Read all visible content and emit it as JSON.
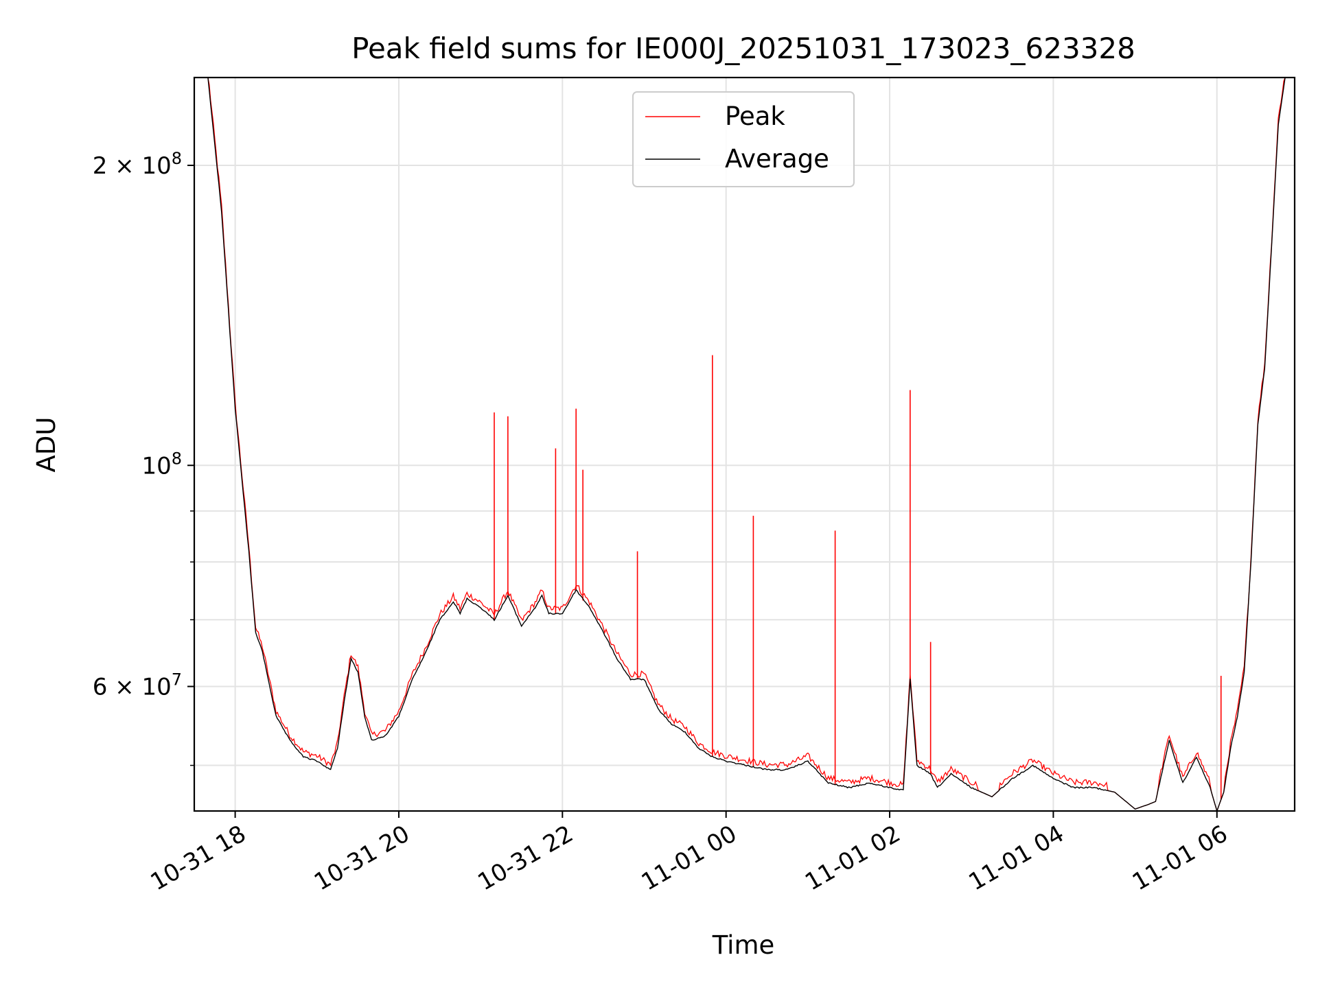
{
  "chart_data": {
    "type": "line",
    "title": "Peak field sums for IE000J_20251031_173023_623328",
    "xlabel": "Time",
    "ylabel": "ADU",
    "yscale": "log",
    "ylim": [
      45000000,
      245000000
    ],
    "xlim": [
      "2025-10-31T17:30",
      "2025-11-01T06:57"
    ],
    "grid": true,
    "legend_position": "upper center",
    "x_tick_labels": [
      "10-31 18",
      "10-31 20",
      "10-31 22",
      "11-01 00",
      "11-01 02",
      "11-01 04",
      "11-01 06"
    ],
    "x_ticks": [
      "2025-10-31T18:00",
      "2025-10-31T20:00",
      "2025-10-31T22:00",
      "2025-11-01T00:00",
      "2025-11-01T02:00",
      "2025-11-01T04:00",
      "2025-11-01T06:00"
    ],
    "y_major_ticks": [
      {
        "value": 200000000,
        "label_base": "2 × 10",
        "label_exp": "8"
      },
      {
        "value": 100000000,
        "label_base": "10",
        "label_exp": "8"
      },
      {
        "value": 60000000,
        "label_base": "6 × 10",
        "label_exp": "7"
      }
    ],
    "y_minor_ticks": [
      50000000,
      70000000,
      80000000,
      90000000
    ],
    "series": [
      {
        "name": "Average",
        "color": "#000000",
        "x": [
          "2025-10-31T17:30",
          "2025-10-31T17:40",
          "2025-10-31T17:50",
          "2025-10-31T18:00",
          "2025-10-31T18:10",
          "2025-10-31T18:15",
          "2025-10-31T18:20",
          "2025-10-31T18:30",
          "2025-10-31T18:40",
          "2025-10-31T18:50",
          "2025-10-31T19:00",
          "2025-10-31T19:10",
          "2025-10-31T19:15",
          "2025-10-31T19:20",
          "2025-10-31T19:25",
          "2025-10-31T19:30",
          "2025-10-31T19:35",
          "2025-10-31T19:40",
          "2025-10-31T19:50",
          "2025-10-31T20:00",
          "2025-10-31T20:10",
          "2025-10-31T20:20",
          "2025-10-31T20:30",
          "2025-10-31T20:40",
          "2025-10-31T20:45",
          "2025-10-31T20:50",
          "2025-10-31T21:00",
          "2025-10-31T21:10",
          "2025-10-31T21:20",
          "2025-10-31T21:30",
          "2025-10-31T21:40",
          "2025-10-31T21:45",
          "2025-10-31T21:50",
          "2025-10-31T22:00",
          "2025-10-31T22:10",
          "2025-10-31T22:20",
          "2025-10-31T22:30",
          "2025-10-31T22:40",
          "2025-10-31T22:50",
          "2025-10-31T23:00",
          "2025-10-31T23:10",
          "2025-10-31T23:20",
          "2025-10-31T23:30",
          "2025-10-31T23:40",
          "2025-10-31T23:50",
          "2025-11-01T00:00",
          "2025-11-01T00:15",
          "2025-11-01T00:30",
          "2025-11-01T00:45",
          "2025-11-01T01:00",
          "2025-11-01T01:15",
          "2025-11-01T01:30",
          "2025-11-01T01:45",
          "2025-11-01T02:00",
          "2025-11-01T02:10",
          "2025-11-01T02:15",
          "2025-11-01T02:20",
          "2025-11-01T02:30",
          "2025-11-01T02:35",
          "2025-11-01T02:45",
          "2025-11-01T03:00",
          "2025-11-01T03:15",
          "2025-11-01T03:30",
          "2025-11-01T03:45",
          "2025-11-01T04:00",
          "2025-11-01T04:15",
          "2025-11-01T04:30",
          "2025-11-01T04:45",
          "2025-11-01T05:00",
          "2025-11-01T05:10",
          "2025-11-01T05:15",
          "2025-11-01T05:25",
          "2025-11-01T05:35",
          "2025-11-01T05:45",
          "2025-11-01T05:55",
          "2025-11-01T06:00",
          "2025-11-01T06:05",
          "2025-11-01T06:10",
          "2025-11-01T06:15",
          "2025-11-01T06:20",
          "2025-11-01T06:25",
          "2025-11-01T06:30",
          "2025-11-01T06:35",
          "2025-11-01T06:40",
          "2025-11-01T06:45",
          "2025-11-01T06:50",
          "2025-11-01T06:55"
        ],
        "values": [
          245000000,
          245000000,
          180000000,
          114000000,
          82000000,
          68000000,
          65000000,
          56000000,
          53000000,
          51000000,
          50500000,
          49500000,
          52000000,
          58000000,
          64000000,
          62000000,
          56000000,
          53000000,
          53500000,
          56000000,
          61000000,
          65000000,
          70000000,
          73000000,
          71000000,
          73500000,
          72000000,
          70000000,
          74000000,
          69000000,
          72000000,
          74000000,
          71000000,
          71000000,
          75000000,
          72000000,
          68000000,
          64000000,
          61000000,
          61000000,
          57000000,
          55000000,
          54000000,
          52000000,
          51000000,
          50500000,
          50000000,
          49500000,
          49500000,
          50500000,
          48000000,
          47500000,
          48000000,
          47500000,
          47200000,
          61000000,
          50000000,
          49000000,
          47500000,
          49000000,
          47500000,
          46500000,
          48500000,
          50000000,
          48500000,
          47500000,
          47500000,
          47000000,
          45200000,
          45700000,
          46000000,
          53000000,
          48000000,
          51000000,
          47500000,
          45000000,
          47000000,
          52000000,
          56000000,
          62000000,
          80000000,
          110000000,
          125000000,
          165000000,
          220000000,
          245000000,
          245000000
        ]
      },
      {
        "name": "Peak",
        "color": "#ff0000",
        "spikes": [
          {
            "x": "2025-10-31T21:10",
            "value": 113000000
          },
          {
            "x": "2025-10-31T21:20",
            "value": 112000000
          },
          {
            "x": "2025-10-31T21:55",
            "value": 104000000
          },
          {
            "x": "2025-10-31T22:10",
            "value": 114000000
          },
          {
            "x": "2025-10-31T22:15",
            "value": 99000000
          },
          {
            "x": "2025-10-31T22:55",
            "value": 82000000
          },
          {
            "x": "2025-10-31T23:50",
            "value": 129000000
          },
          {
            "x": "2025-11-01T00:20",
            "value": 89000000
          },
          {
            "x": "2025-11-01T01:20",
            "value": 86000000
          },
          {
            "x": "2025-11-01T02:15",
            "value": 119000000
          },
          {
            "x": "2025-11-01T02:30",
            "value": 66500000
          },
          {
            "x": "2025-11-01T06:03",
            "value": 61500000
          }
        ]
      }
    ]
  }
}
